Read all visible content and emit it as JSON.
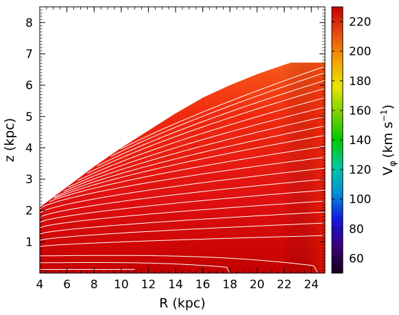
{
  "chart_data": {
    "type": "heatmap",
    "xlabel": "R (kpc)",
    "ylabel": "z (kpc)",
    "xlim": [
      4,
      25
    ],
    "ylim": [
      0,
      8.5
    ],
    "x_ticks": [
      4,
      6,
      8,
      10,
      12,
      14,
      16,
      18,
      20,
      22,
      24
    ],
    "y_ticks": [
      1,
      2,
      3,
      4,
      5,
      6,
      7,
      8
    ],
    "domain_upper_boundary": {
      "R": [
        4,
        6,
        8,
        10,
        12,
        14,
        16,
        18,
        20,
        22,
        22.5,
        25
      ],
      "z": [
        2.1,
        2.75,
        3.4,
        4.0,
        4.55,
        5.1,
        5.6,
        6.0,
        6.35,
        6.65,
        6.72,
        6.72
      ]
    },
    "colorbar": {
      "label": "V",
      "label_subscript": "φ",
      "label_unit": "(km s",
      "label_unit_exp": "−1",
      "label_unit_close": ")",
      "min": 50,
      "max": 230,
      "ticks": [
        60,
        80,
        100,
        120,
        140,
        160,
        180,
        200,
        220
      ],
      "colormap": [
        "#150018",
        "#3a0077",
        "#1515e0",
        "#0090d8",
        "#00c8a0",
        "#00c800",
        "#7ad000",
        "#e6e600",
        "#f5a000",
        "#e84a10",
        "#c40000"
      ]
    },
    "contours": [
      {
        "z0": 0.12,
        "z_end": 0.12,
        "R_end": 11.0
      },
      {
        "z0": 0.33,
        "z_end": 0.18,
        "R_end": 18.0
      },
      {
        "z0": 0.55,
        "z_end": 0.22,
        "R_end": 24.5
      },
      {
        "z0": 0.85,
        "z_end": 1.2,
        "R_end": 25.0
      },
      {
        "z0": 1.05,
        "z_end": 1.6,
        "R_end": 25.0
      },
      {
        "z0": 1.25,
        "z_end": 1.95,
        "R_end": 25.0
      },
      {
        "z0": 1.45,
        "z_end": 2.3,
        "R_end": 25.0
      },
      {
        "z0": 1.62,
        "z_end": 2.65,
        "R_end": 25.0
      },
      {
        "z0": 1.78,
        "z_end": 3.0,
        "R_end": 25.0
      },
      {
        "z0": 1.92,
        "z_end": 3.35,
        "R_end": 25.0
      },
      {
        "z0": 2.05,
        "z_end": 3.7,
        "R_end": 25.0
      },
      {
        "z0": 2.1,
        "z_end": 4.05,
        "R_end": 25.0
      },
      {
        "z0": 2.1,
        "z_end": 4.4,
        "R_end": 25.0
      },
      {
        "z0": 2.1,
        "z_end": 4.7,
        "R_end": 25.0
      },
      {
        "z0": 2.1,
        "z_end": 5.0,
        "R_end": 25.0
      },
      {
        "z0": 2.1,
        "z_end": 5.3,
        "R_end": 25.0
      },
      {
        "z0": 2.1,
        "z_end": 5.6,
        "R_end": 25.0
      },
      {
        "z0": 2.1,
        "z_end": 5.9,
        "R_end": 25.0
      },
      {
        "z0": 2.1,
        "z_end": 6.15,
        "R_end": 25.0
      },
      {
        "z0": 2.1,
        "z_end": 6.4,
        "R_end": 25.0
      },
      {
        "z0": 2.1,
        "z_end": 6.6,
        "R_end": 25.0
      }
    ]
  }
}
